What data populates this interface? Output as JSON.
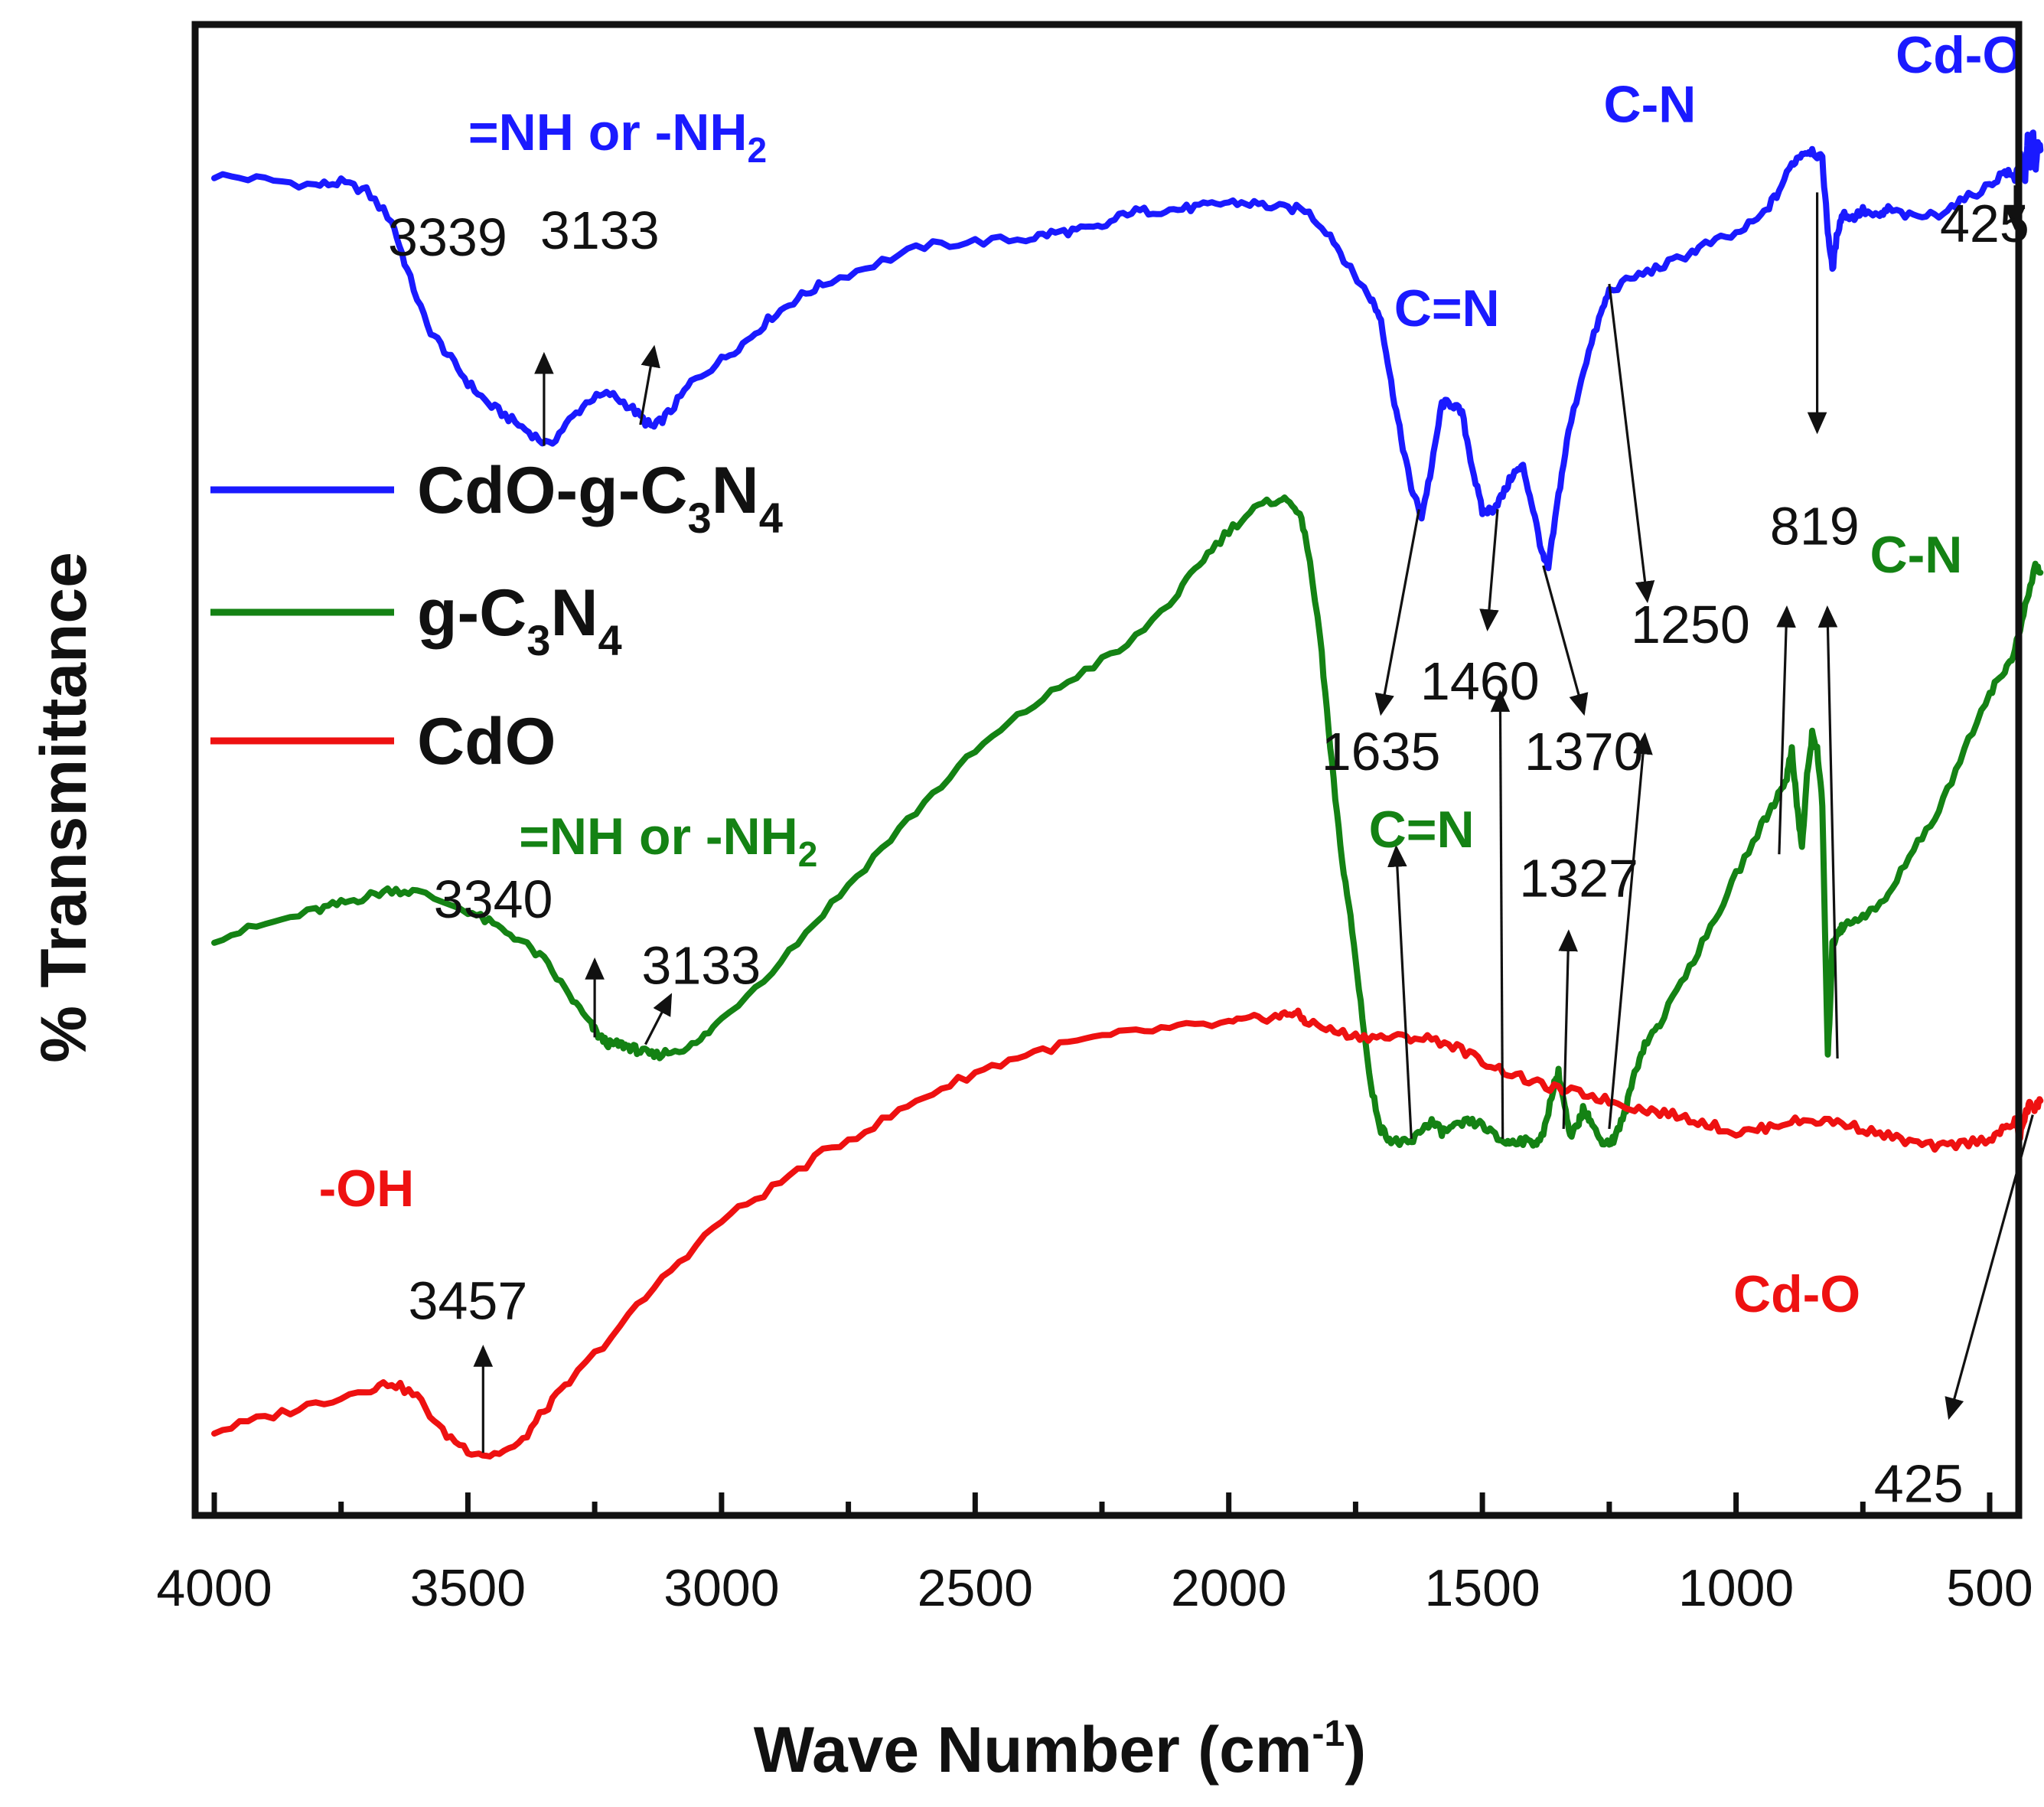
{
  "chart_data": {
    "type": "line",
    "xlabel": "Wave Number (cm",
    "xlabel_sup": "-1",
    "xlabel_close": ")",
    "ylabel": "% Transmittance",
    "xlim": [
      4000,
      400
    ],
    "x_reversed": true,
    "xticks": [
      4000,
      3500,
      3000,
      2500,
      2000,
      1500,
      1000,
      500
    ],
    "ylim": [
      0,
      1
    ],
    "y_ticks_shown": false,
    "colors": {
      "blue": "#1a1aff",
      "green": "#148214",
      "red": "#ee1111",
      "axis": "#111111"
    },
    "legend": {
      "placement": "upper-left",
      "entries": [
        {
          "series": 0,
          "parts": [
            "CdO-g-C",
            "3",
            "N",
            "4"
          ]
        },
        {
          "series": 1,
          "parts": [
            "g-C",
            "3",
            "N",
            "4"
          ]
        },
        {
          "series": 2,
          "parts": [
            "CdO"
          ]
        }
      ]
    },
    "series": [
      {
        "name": "CdO-g-C3N4",
        "color": "#1a1aff",
        "x": [
          4000,
          3900,
          3800,
          3750,
          3700,
          3650,
          3620,
          3580,
          3540,
          3500,
          3460,
          3420,
          3380,
          3340,
          3300,
          3260,
          3220,
          3180,
          3150,
          3133,
          3100,
          3060,
          3000,
          2950,
          2900,
          2850,
          2800,
          2700,
          2600,
          2500,
          2400,
          2350,
          2300,
          2250,
          2200,
          2150,
          2100,
          2050,
          2000,
          1950,
          1900,
          1850,
          1800,
          1760,
          1720,
          1700,
          1680,
          1660,
          1640,
          1620,
          1600,
          1580,
          1560,
          1540,
          1520,
          1500,
          1480,
          1460,
          1440,
          1420,
          1400,
          1380,
          1370,
          1350,
          1330,
          1300,
          1270,
          1250,
          1200,
          1150,
          1100,
          1060,
          1000,
          950,
          920,
          890,
          870,
          850,
          830,
          819,
          810,
          800,
          790,
          770,
          750,
          720,
          700,
          650,
          600,
          550,
          500,
          470,
          450,
          440,
          430,
          425,
          420,
          415,
          410,
          405,
          400
        ],
        "y": [
          0.927,
          0.924,
          0.92,
          0.922,
          0.916,
          0.895,
          0.86,
          0.82,
          0.8,
          0.78,
          0.765,
          0.755,
          0.745,
          0.735,
          0.753,
          0.768,
          0.772,
          0.763,
          0.752,
          0.748,
          0.76,
          0.78,
          0.796,
          0.81,
          0.827,
          0.84,
          0.85,
          0.864,
          0.877,
          0.88,
          0.882,
          0.886,
          0.888,
          0.89,
          0.901,
          0.902,
          0.903,
          0.905,
          0.908,
          0.907,
          0.904,
          0.903,
          0.885,
          0.86,
          0.84,
          0.825,
          0.78,
          0.74,
          0.705,
          0.685,
          0.72,
          0.765,
          0.765,
          0.758,
          0.72,
          0.688,
          0.69,
          0.7,
          0.715,
          0.72,
          0.69,
          0.655,
          0.648,
          0.7,
          0.745,
          0.79,
          0.825,
          0.845,
          0.855,
          0.862,
          0.87,
          0.878,
          0.885,
          0.898,
          0.913,
          0.935,
          0.943,
          0.945,
          0.938,
          0.888,
          0.86,
          0.887,
          0.9,
          0.897,
          0.902,
          0.897,
          0.903,
          0.897,
          0.9,
          0.91,
          0.92,
          0.93,
          0.925,
          0.94,
          0.925,
          0.955,
          0.935,
          0.96,
          0.93,
          0.95,
          0.945
        ]
      },
      {
        "name": "g-C3N4",
        "color": "#148214",
        "x": [
          4000,
          3900,
          3800,
          3750,
          3700,
          3650,
          3600,
          3500,
          3450,
          3400,
          3350,
          3300,
          3260,
          3240,
          3220,
          3200,
          3180,
          3160,
          3133,
          3100,
          3050,
          3000,
          2900,
          2800,
          2700,
          2600,
          2500,
          2400,
          2300,
          2200,
          2100,
          2050,
          2000,
          1950,
          1900,
          1870,
          1850,
          1820,
          1800,
          1780,
          1760,
          1740,
          1720,
          1700,
          1680,
          1660,
          1640,
          1620,
          1600,
          1580,
          1560,
          1530,
          1500,
          1470,
          1450,
          1430,
          1400,
          1380,
          1360,
          1350,
          1340,
          1327,
          1310,
          1300,
          1290,
          1270,
          1250,
          1240,
          1220,
          1200,
          1180,
          1150,
          1100,
          1050,
          1000,
          950,
          920,
          900,
          890,
          880,
          870,
          860,
          850,
          840,
          830,
          819,
          810,
          800,
          790,
          760,
          730,
          700,
          650,
          600,
          550,
          500,
          470,
          450,
          430,
          410,
          400
        ],
        "y": [
          0.385,
          0.395,
          0.405,
          0.41,
          0.415,
          0.42,
          0.418,
          0.405,
          0.395,
          0.385,
          0.37,
          0.345,
          0.325,
          0.315,
          0.31,
          0.31,
          0.308,
          0.305,
          0.302,
          0.305,
          0.31,
          0.328,
          0.363,
          0.403,
          0.443,
          0.482,
          0.518,
          0.547,
          0.572,
          0.593,
          0.63,
          0.655,
          0.675,
          0.69,
          0.698,
          0.693,
          0.675,
          0.6,
          0.52,
          0.45,
          0.4,
          0.34,
          0.28,
          0.25,
          0.242,
          0.24,
          0.24,
          0.25,
          0.255,
          0.248,
          0.25,
          0.255,
          0.253,
          0.243,
          0.24,
          0.242,
          0.24,
          0.245,
          0.28,
          0.29,
          0.27,
          0.243,
          0.255,
          0.265,
          0.258,
          0.243,
          0.24,
          0.243,
          0.26,
          0.29,
          0.31,
          0.325,
          0.36,
          0.392,
          0.43,
          0.465,
          0.485,
          0.5,
          0.52,
          0.48,
          0.45,
          0.5,
          0.53,
          0.52,
          0.48,
          0.3,
          0.38,
          0.39,
          0.393,
          0.4,
          0.405,
          0.415,
          0.45,
          0.475,
          0.52,
          0.56,
          0.575,
          0.59,
          0.62,
          0.65,
          0.645
        ]
      },
      {
        "name": "CdO",
        "color": "#ee1111",
        "x": [
          4000,
          3900,
          3800,
          3700,
          3650,
          3600,
          3550,
          3500,
          3457,
          3400,
          3350,
          3300,
          3200,
          3100,
          3000,
          2900,
          2800,
          2700,
          2600,
          2500,
          2400,
          2300,
          2200,
          2100,
          2000,
          1950,
          1900,
          1870,
          1850,
          1800,
          1750,
          1700,
          1650,
          1600,
          1550,
          1500,
          1450,
          1400,
          1350,
          1300,
          1250,
          1200,
          1150,
          1100,
          1050,
          1000,
          950,
          900,
          850,
          800,
          750,
          700,
          650,
          600,
          550,
          500,
          470,
          450,
          440,
          430,
          420,
          410,
          400
        ],
        "y": [
          0.035,
          0.045,
          0.055,
          0.065,
          0.07,
          0.06,
          0.035,
          0.022,
          0.018,
          0.025,
          0.05,
          0.07,
          0.11,
          0.15,
          0.185,
          0.208,
          0.233,
          0.252,
          0.273,
          0.29,
          0.303,
          0.312,
          0.318,
          0.322,
          0.325,
          0.328,
          0.33,
          0.333,
          0.327,
          0.32,
          0.316,
          0.315,
          0.315,
          0.314,
          0.308,
          0.298,
          0.29,
          0.283,
          0.278,
          0.275,
          0.27,
          0.265,
          0.262,
          0.258,
          0.253,
          0.247,
          0.25,
          0.255,
          0.256,
          0.255,
          0.25,
          0.245,
          0.24,
          0.237,
          0.24,
          0.243,
          0.25,
          0.255,
          0.245,
          0.26,
          0.268,
          0.265,
          0.27
        ]
      }
    ],
    "group_labels": [
      {
        "series": 0,
        "parts": [
          "=NH or -NH",
          "2"
        ],
        "x": 3205,
        "y": 0.945
      },
      {
        "series": 0,
        "parts": [
          "C=N"
        ],
        "x": 1570,
        "y": 0.82
      },
      {
        "series": 0,
        "parts": [
          "C-N"
        ],
        "x": 1170,
        "y": 0.965
      },
      {
        "series": 0,
        "parts": [
          "Cd-O"
        ],
        "x": 560,
        "y": 1.0
      },
      {
        "series": 1,
        "parts": [
          "=NH or -NH",
          "2"
        ],
        "x": 3105,
        "y": 0.445
      },
      {
        "series": 1,
        "parts": [
          "C=N"
        ],
        "x": 1620,
        "y": 0.45
      },
      {
        "series": 1,
        "parts": [
          "C-N"
        ],
        "x": 645,
        "y": 0.645
      },
      {
        "series": 2,
        "parts": [
          "-OH"
        ],
        "x": 3700,
        "y": 0.195
      },
      {
        "series": 2,
        "parts": [
          "Cd-O"
        ],
        "x": 880,
        "y": 0.12
      }
    ],
    "peak_labels": [
      {
        "text": "3339",
        "x": 3540,
        "y": 0.87
      },
      {
        "text": "3133",
        "x": 3240,
        "y": 0.875
      },
      {
        "text": "425",
        "x": 510,
        "y": 0.88
      },
      {
        "text": "819",
        "x": 845,
        "y": 0.665
      },
      {
        "text": "1250",
        "x": 1090,
        "y": 0.595
      },
      {
        "text": "1460",
        "x": 1505,
        "y": 0.555
      },
      {
        "text": "1635",
        "x": 1700,
        "y": 0.505
      },
      {
        "text": "1370",
        "x": 1300,
        "y": 0.505
      },
      {
        "text": "1327",
        "x": 1310,
        "y": 0.415
      },
      {
        "text": "3340",
        "x": 3450,
        "y": 0.4
      },
      {
        "text": "3133",
        "x": 3040,
        "y": 0.353
      },
      {
        "text": "3457",
        "x": 3500,
        "y": 0.115
      },
      {
        "text": "425",
        "x": 640,
        "y": -0.015
      }
    ],
    "arrows": [
      {
        "from": [
          3350,
          0.735
        ],
        "to": [
          3350,
          0.8
        ]
      },
      {
        "from": [
          3160,
          0.75
        ],
        "to": [
          3133,
          0.805
        ]
      },
      {
        "from": [
          1625,
          0.69
        ],
        "to": [
          1700,
          0.545
        ]
      },
      {
        "from": [
          1470,
          0.69
        ],
        "to": [
          1490,
          0.605
        ]
      },
      {
        "from": [
          1380,
          0.65
        ],
        "to": [
          1300,
          0.545
        ]
      },
      {
        "from": [
          1250,
          0.85
        ],
        "to": [
          1175,
          0.625
        ]
      },
      {
        "from": [
          840,
          0.915
        ],
        "to": [
          840,
          0.745
        ]
      },
      {
        "from": [
          450,
          0.92
        ],
        "to": [
          450,
          0.89
        ]
      },
      {
        "from": [
          1640,
          0.243
        ],
        "to": [
          1670,
          0.45
        ]
      },
      {
        "from": [
          1460,
          0.243
        ],
        "to": [
          1465,
          0.56
        ]
      },
      {
        "from": [
          1340,
          0.25
        ],
        "to": [
          1330,
          0.39
        ]
      },
      {
        "from": [
          1250,
          0.25
        ],
        "to": [
          1180,
          0.53
        ]
      },
      {
        "from": [
          915,
          0.445
        ],
        "to": [
          900,
          0.62
        ]
      },
      {
        "from": [
          800,
          0.3
        ],
        "to": [
          820,
          0.62
        ]
      },
      {
        "from": [
          3250,
          0.315
        ],
        "to": [
          3250,
          0.37
        ]
      },
      {
        "from": [
          3150,
          0.31
        ],
        "to": [
          3100,
          0.345
        ]
      },
      {
        "from": [
          3470,
          0.02
        ],
        "to": [
          3470,
          0.095
        ]
      },
      {
        "from": [
          415,
          0.26
        ],
        "to": [
          580,
          0.045
        ]
      }
    ]
  }
}
